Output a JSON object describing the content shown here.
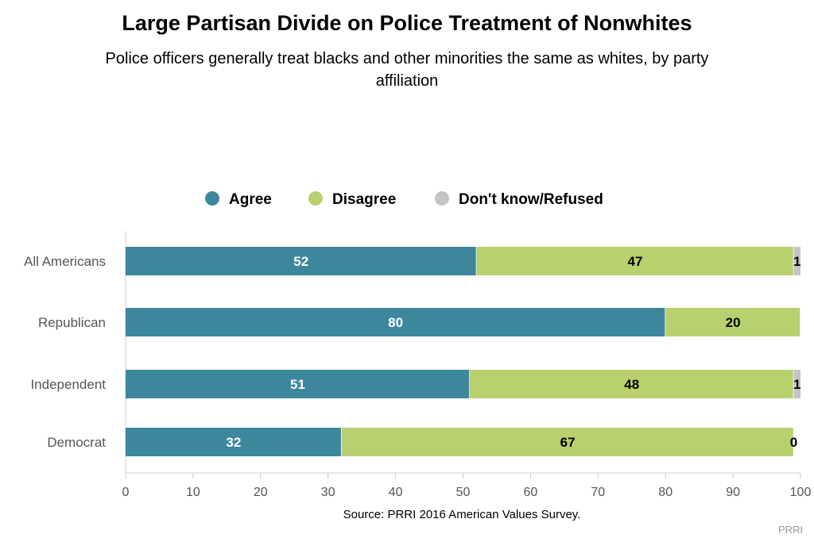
{
  "chart_data": {
    "type": "bar",
    "orientation": "horizontal",
    "stacked": true,
    "title": "Large Partisan Divide on Police Treatment of Nonwhites",
    "subtitle": "Police officers generally treat blacks and other minorities the same as whites, by party affiliation",
    "categories": [
      "All Americans",
      "Republican",
      "Independent",
      "Democrat"
    ],
    "series": [
      {
        "name": "Agree",
        "color": "#3d879c",
        "values": [
          52,
          80,
          51,
          32
        ],
        "label_color": "#ffffff"
      },
      {
        "name": "Disagree",
        "color": "#b8d06e",
        "values": [
          47,
          20,
          48,
          67
        ],
        "label_color": "#000000"
      },
      {
        "name": "Don't know/Refused",
        "color": "#c4c4c4",
        "values": [
          1,
          null,
          1,
          0
        ],
        "label_color": "#000000"
      }
    ],
    "xlim": [
      0,
      100
    ],
    "xticks": [
      0,
      10,
      20,
      30,
      40,
      50,
      60,
      70,
      80,
      90,
      100
    ],
    "legend_position": "top",
    "grid": false,
    "source": "Source: PRRI 2016 American Values Survey.",
    "credit": "PRRI"
  }
}
